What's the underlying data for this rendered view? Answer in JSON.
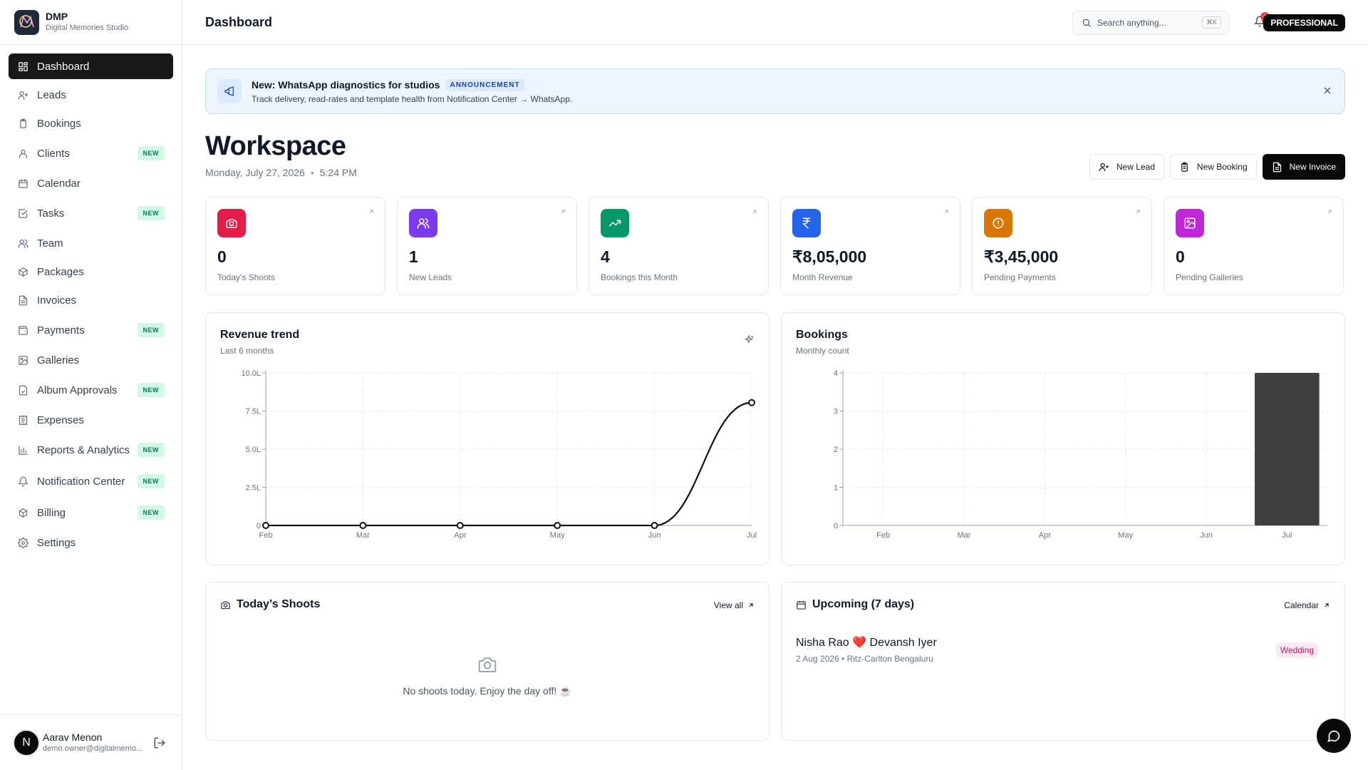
{
  "brand": {
    "name": "DMP",
    "subtitle": "Digital Memories Studio"
  },
  "sidebar": {
    "items": [
      {
        "label": "Dashboard",
        "icon": "dashboard-icon",
        "active": true,
        "badge": ""
      },
      {
        "label": "Leads",
        "icon": "user-plus-icon",
        "badge": ""
      },
      {
        "label": "Bookings",
        "icon": "clipboard-icon",
        "badge": ""
      },
      {
        "label": "Clients",
        "icon": "user-icon",
        "badge": "NEW"
      },
      {
        "label": "Calendar",
        "icon": "calendar-icon",
        "badge": ""
      },
      {
        "label": "Tasks",
        "icon": "checkbox-icon",
        "badge": "NEW"
      },
      {
        "label": "Team",
        "icon": "users-icon",
        "badge": ""
      },
      {
        "label": "Packages",
        "icon": "package-icon",
        "badge": ""
      },
      {
        "label": "Invoices",
        "icon": "file-icon",
        "badge": ""
      },
      {
        "label": "Payments",
        "icon": "wallet-icon",
        "badge": "NEW"
      },
      {
        "label": "Galleries",
        "icon": "image-icon",
        "badge": ""
      },
      {
        "label": "Album Approvals",
        "icon": "album-icon",
        "badge": "NEW"
      },
      {
        "label": "Expenses",
        "icon": "receipt-icon",
        "badge": ""
      },
      {
        "label": "Reports & Analytics",
        "icon": "bar-chart-icon",
        "badge": "NEW"
      },
      {
        "label": "Notification Center",
        "icon": "bell-icon",
        "badge": "NEW"
      },
      {
        "label": "Billing",
        "icon": "boxes-icon",
        "badge": "NEW"
      },
      {
        "label": "Settings",
        "icon": "gear-icon",
        "badge": ""
      }
    ]
  },
  "user": {
    "initial": "N",
    "name": "Aarav Menon",
    "email": "demo.owner@digitalmemo..."
  },
  "header": {
    "title": "Dashboard",
    "search_placeholder": "Search anything...",
    "search_shortcut": "⌘K",
    "notification_count": "4",
    "plan": "PROFESSIONAL"
  },
  "announcement": {
    "title": "New: WhatsApp diagnostics for studios",
    "tag": "ANNOUNCEMENT",
    "description": "Track delivery, read-rates and template health from Notification Center → WhatsApp."
  },
  "workspace": {
    "title": "Workspace",
    "date": "Monday, July 27, 2026",
    "time": "5:24 PM"
  },
  "actions": {
    "new_lead": "New Lead",
    "new_booking": "New Booking",
    "new_invoice": "New Invoice"
  },
  "stats": [
    {
      "value": "0",
      "label": "Today's Shoots",
      "color": "#e11d48",
      "icon": "camera-icon"
    },
    {
      "value": "1",
      "label": "New Leads",
      "color": "#7c3aed",
      "icon": "users-icon"
    },
    {
      "value": "4",
      "label": "Bookings this Month",
      "color": "#059669",
      "icon": "trending-up-icon"
    },
    {
      "value": "₹8,05,000",
      "label": "Month Revenue",
      "color": "#2563eb",
      "icon": "rupee-icon"
    },
    {
      "value": "₹3,45,000",
      "label": "Pending Payments",
      "color": "#d97706",
      "icon": "alert-circle-icon"
    },
    {
      "value": "0",
      "label": "Pending Galleries",
      "color": "#c026d3",
      "icon": "image-icon"
    }
  ],
  "chart_data": [
    {
      "type": "line",
      "title": "Revenue trend",
      "subtitle": "Last 6 months",
      "categories": [
        "Feb",
        "Mar",
        "Apr",
        "May",
        "Jun",
        "Jul"
      ],
      "values": [
        0,
        0,
        0,
        0,
        0,
        8.05
      ],
      "yticks": [
        "0",
        "2.5L",
        "5.0L",
        "7.5L",
        "10.0L"
      ],
      "ylim": [
        0,
        10
      ],
      "grid": true
    },
    {
      "type": "bar",
      "title": "Bookings",
      "subtitle": "Monthly count",
      "categories": [
        "Feb",
        "Mar",
        "Apr",
        "May",
        "Jun",
        "Jul"
      ],
      "values": [
        0,
        0,
        0,
        0,
        0,
        4
      ],
      "yticks": [
        "0",
        "1",
        "2",
        "3",
        "4"
      ],
      "ylim": [
        0,
        4
      ],
      "grid": true,
      "bar_color": "#3f3f3f"
    }
  ],
  "shoots": {
    "title": "Today’s Shoots",
    "link": "View all",
    "empty_text": "No shoots today. Enjoy the day off! ☕"
  },
  "upcoming": {
    "title": "Upcoming (7 days)",
    "link": "Calendar",
    "events": [
      {
        "title": "Nisha Rao ❤️ Devansh Iyer",
        "meta": "2 Aug 2026 • Ritz-Carlton Bengaluru",
        "tag": "Wedding"
      }
    ]
  }
}
